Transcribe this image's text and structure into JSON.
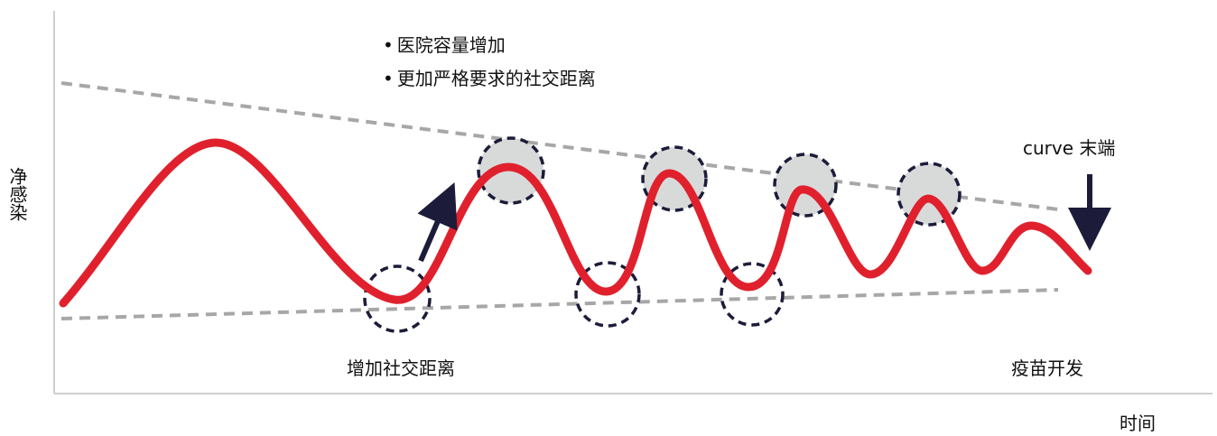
{
  "labels": {
    "y_axis": "净感染",
    "x_axis": "时间",
    "bullets": [
      "医院容量增加",
      "更加严格要求的社交距离"
    ],
    "distancing": "增加社交距离",
    "vaccine": "疫苗开发",
    "curve_end": "curve 末端"
  },
  "colors": {
    "curve": "#e0212d",
    "dashed_trend": "#a7a7a7",
    "axis": "#cfcfcf",
    "peak_marker_fill": "#d8dada",
    "marker_outline": "#1c1c3a",
    "arrow": "#1c1c3a"
  },
  "icons": [
    "up-right-arrow-icon",
    "down-arrow-icon"
  ]
}
